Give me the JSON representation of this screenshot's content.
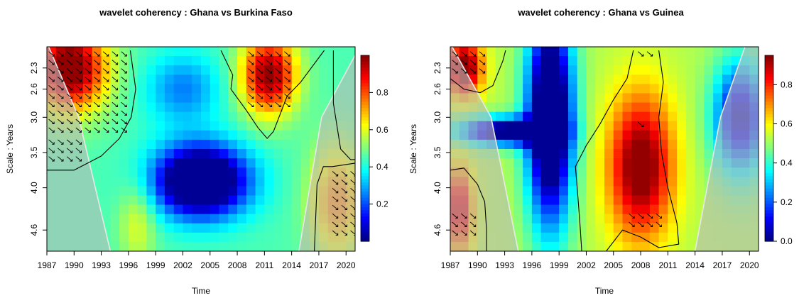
{
  "figure": {
    "panels": [
      {
        "title": "wavelet coherency : Ghana vs Burkina Faso",
        "xlabel": "Time",
        "ylabel": "Scale : Years"
      },
      {
        "title": "wavelet coherency : Ghana vs Guinea",
        "xlabel": "Time",
        "ylabel": "Scale : Years"
      }
    ]
  },
  "chart_data": [
    {
      "type": "heatmap",
      "title": "wavelet coherency : Ghana vs Burkina Faso",
      "xlabel": "Time",
      "ylabel": "Scale : Years",
      "x_ticks": [
        "1987",
        "1990",
        "1993",
        "1996",
        "1999",
        "2002",
        "2005",
        "2008",
        "2011",
        "2014",
        "2017",
        "2020"
      ],
      "y_ticks": [
        "2.3",
        "2.6",
        "3.0",
        "3.5",
        "4.0",
        "4.6"
      ],
      "xlim": [
        1987,
        2021
      ],
      "ylim": [
        2.0,
        4.9
      ],
      "y_reversed": true,
      "colorbar": {
        "range": [
          0.0,
          1.0
        ],
        "ticks": [
          "0.2",
          "0.4",
          "0.6",
          "0.8"
        ]
      },
      "coherence_blobs": [
        {
          "x": 1989.5,
          "y": 2.3,
          "sx": 4.0,
          "sy": 0.6,
          "value": 0.62
        },
        {
          "x": 2004.0,
          "y": 3.9,
          "sx": 5.0,
          "sy": 0.5,
          "value": -0.72
        },
        {
          "x": 2002.0,
          "y": 2.6,
          "sx": 4.0,
          "sy": 0.5,
          "value": -0.2
        },
        {
          "x": 2011.5,
          "y": 2.4,
          "sx": 3.0,
          "sy": 0.55,
          "value": 0.55
        },
        {
          "x": 2019.0,
          "y": 4.2,
          "sx": 3.0,
          "sy": 0.8,
          "value": 0.3
        },
        {
          "x": 1997.0,
          "y": 4.5,
          "sx": 2.0,
          "sy": 0.6,
          "value": 0.15
        }
      ],
      "base_value": 0.45,
      "coi": {
        "left": [
          [
            1987.2,
            2.0
          ],
          [
            1990.5,
            3.0
          ],
          [
            1994.0,
            4.9
          ]
        ],
        "right": [
          [
            2021.5,
            2.0
          ],
          [
            2017.3,
            3.0
          ],
          [
            2014.8,
            4.9
          ]
        ]
      },
      "significance_contours": [
        [
          [
            1987,
            3.75
          ],
          [
            1990,
            3.75
          ],
          [
            1993,
            3.55
          ],
          [
            1995,
            3.3
          ],
          [
            1996.3,
            3.0
          ],
          [
            1996.8,
            2.6
          ],
          [
            1996.2,
            2.05
          ]
        ],
        [
          [
            2006.2,
            2.05
          ],
          [
            2007.5,
            2.4
          ],
          [
            2007.3,
            2.6
          ],
          [
            2009,
            2.9
          ],
          [
            2010.3,
            3.15
          ],
          [
            2011.3,
            3.3
          ],
          [
            2012,
            3.2
          ],
          [
            2013.5,
            2.7
          ],
          [
            2015,
            2.5
          ],
          [
            2017.6,
            2.05
          ]
        ],
        [
          [
            2021,
            3.65
          ],
          [
            2018.5,
            3.7
          ],
          [
            2017.5,
            3.7
          ],
          [
            2016.8,
            3.95
          ],
          [
            2016.5,
            4.9
          ]
        ],
        [
          [
            2018.6,
            2.05
          ],
          [
            2018.6,
            2.8
          ],
          [
            2019.4,
            3.45
          ],
          [
            2020.5,
            3.6
          ],
          [
            2021,
            3.6
          ]
        ]
      ],
      "arrow_regions": [
        {
          "x": [
            1987.5,
            1995.5
          ],
          "y": [
            2.1,
            3.25
          ],
          "step": [
            1.0,
            0.12
          ]
        },
        {
          "x": [
            1987.5,
            1990.5
          ],
          "y": [
            3.35,
            3.65
          ],
          "step": [
            1.0,
            0.12
          ]
        },
        {
          "x": [
            2009.5,
            2013.5
          ],
          "y": [
            2.1,
            2.9
          ],
          "step": [
            1.0,
            0.12
          ]
        },
        {
          "x": [
            2018.8,
            2020.8
          ],
          "y": [
            3.8,
            4.7
          ],
          "step": [
            1.0,
            0.12
          ]
        }
      ]
    },
    {
      "type": "heatmap",
      "title": "wavelet coherency : Ghana vs Guinea",
      "xlabel": "Time",
      "ylabel": "Scale : Years",
      "x_ticks": [
        "1987",
        "1990",
        "1993",
        "1996",
        "1999",
        "2002",
        "2005",
        "2008",
        "2011",
        "2014",
        "2017",
        "2020"
      ],
      "y_ticks": [
        "2.3",
        "2.6",
        "3.0",
        "3.5",
        "4.0",
        "4.6"
      ],
      "xlim": [
        1987,
        2021
      ],
      "ylim": [
        2.0,
        4.9
      ],
      "y_reversed": true,
      "colorbar": {
        "range": [
          0.0,
          0.95
        ],
        "ticks": [
          "0.0",
          "0.2",
          "0.4",
          "0.6",
          "0.8"
        ]
      },
      "coherence_blobs": [
        {
          "x": 1998.0,
          "y": 3.0,
          "sx": 2.5,
          "sy": 1.5,
          "value": -0.8
        },
        {
          "x": 1993.0,
          "y": 3.2,
          "sx": 5.0,
          "sy": 0.2,
          "value": -0.6
        },
        {
          "x": 2008.0,
          "y": 3.7,
          "sx": 3.5,
          "sy": 1.0,
          "value": 0.5
        },
        {
          "x": 1988.5,
          "y": 2.3,
          "sx": 2.0,
          "sy": 0.4,
          "value": 0.5
        },
        {
          "x": 1988.0,
          "y": 4.3,
          "sx": 1.5,
          "sy": 0.6,
          "value": 0.4
        },
        {
          "x": 2019.0,
          "y": 3.0,
          "sx": 3.0,
          "sy": 0.8,
          "value": -0.5
        }
      ],
      "base_value": 0.55,
      "coi": {
        "left": [
          [
            1987.2,
            2.0
          ],
          [
            1991.5,
            3.0
          ],
          [
            1994.5,
            4.9
          ]
        ],
        "right": [
          [
            2019.5,
            2.0
          ],
          [
            2016.8,
            3.0
          ],
          [
            2014.0,
            4.9
          ]
        ]
      },
      "significance_contours": [
        [
          [
            1987,
            2.45
          ],
          [
            1988.5,
            2.6
          ],
          [
            1990.3,
            2.65
          ],
          [
            1991.7,
            2.55
          ],
          [
            1992.8,
            2.2
          ],
          [
            1993.1,
            2.05
          ]
        ],
        [
          [
            1987,
            3.75
          ],
          [
            1988.5,
            3.72
          ],
          [
            1990,
            3.95
          ],
          [
            1990.8,
            4.2
          ],
          [
            1991,
            4.6
          ],
          [
            1991,
            4.9
          ]
        ],
        [
          [
            2001.5,
            4.9
          ],
          [
            2001.3,
            4.5
          ],
          [
            2001,
            4.0
          ],
          [
            2000.8,
            3.7
          ],
          [
            2002,
            3.4
          ],
          [
            2003.5,
            3.1
          ],
          [
            2005,
            2.75
          ],
          [
            2006.5,
            2.45
          ],
          [
            2007.2,
            2.05
          ]
        ],
        [
          [
            2010,
            2.05
          ],
          [
            2010.5,
            2.5
          ],
          [
            2010,
            3.0
          ],
          [
            2010.3,
            3.5
          ],
          [
            2011,
            4.0
          ],
          [
            2012,
            4.5
          ],
          [
            2012.2,
            4.8
          ],
          [
            2010,
            4.85
          ],
          [
            2008,
            4.7
          ],
          [
            2006,
            4.6
          ],
          [
            2004.2,
            4.9
          ]
        ]
      ],
      "arrow_regions": [
        {
          "x": [
            1987.5,
            1990.5
          ],
          "y": [
            2.1,
            2.4
          ],
          "step": [
            1.0,
            0.12
          ]
        },
        {
          "x": [
            1987.5,
            1989.5
          ],
          "y": [
            4.4,
            4.7
          ],
          "step": [
            1.0,
            0.12
          ]
        },
        {
          "x": [
            2007.0,
            2010.0
          ],
          "y": [
            4.4,
            4.6
          ],
          "step": [
            1.0,
            0.12
          ]
        },
        {
          "x": [
            2008.0,
            2009.0
          ],
          "y": [
            2.1,
            2.2
          ],
          "step": [
            1.0,
            0.12
          ]
        },
        {
          "x": [
            2008.0,
            2008.5
          ],
          "y": [
            3.1,
            3.1
          ],
          "step": [
            1.0,
            0.12
          ]
        }
      ]
    }
  ]
}
